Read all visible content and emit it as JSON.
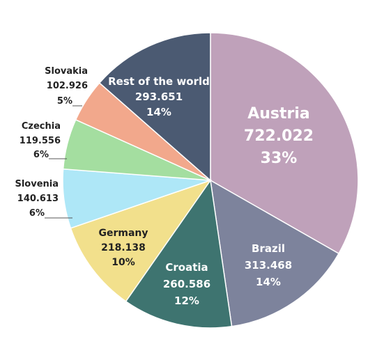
{
  "chart_data": {
    "type": "pie",
    "start_angle_deg": 0,
    "direction": "clockwise",
    "slices": [
      {
        "name": "Austria",
        "value_text": "722.022",
        "value": 722022,
        "percent": "33%",
        "color": "#bfa1ba"
      },
      {
        "name": "Brazil",
        "value_text": "313.468",
        "value": 313468,
        "percent": "14%",
        "color": "#7d839c"
      },
      {
        "name": "Croatia",
        "value_text": "260.586",
        "value": 260586,
        "percent": "12%",
        "color": "#3e7470"
      },
      {
        "name": "Germany",
        "value_text": "218.138",
        "value": 218138,
        "percent": "10%",
        "color": "#f2e08c"
      },
      {
        "name": "Slovenia",
        "value_text": "140.613",
        "value": 140613,
        "percent": "6%",
        "color": "#aee7f7"
      },
      {
        "name": "Czechia",
        "value_text": "119.556",
        "value": 119556,
        "percent": "6%",
        "color": "#a4dea0"
      },
      {
        "name": "Slovakia",
        "value_text": "102.926",
        "value": 102926,
        "percent": "5%",
        "color": "#f2a88c"
      },
      {
        "name": "Rest of the world",
        "value_text": "293.651",
        "value": 293651,
        "percent": "14%",
        "color": "#4b5a72"
      }
    ]
  }
}
